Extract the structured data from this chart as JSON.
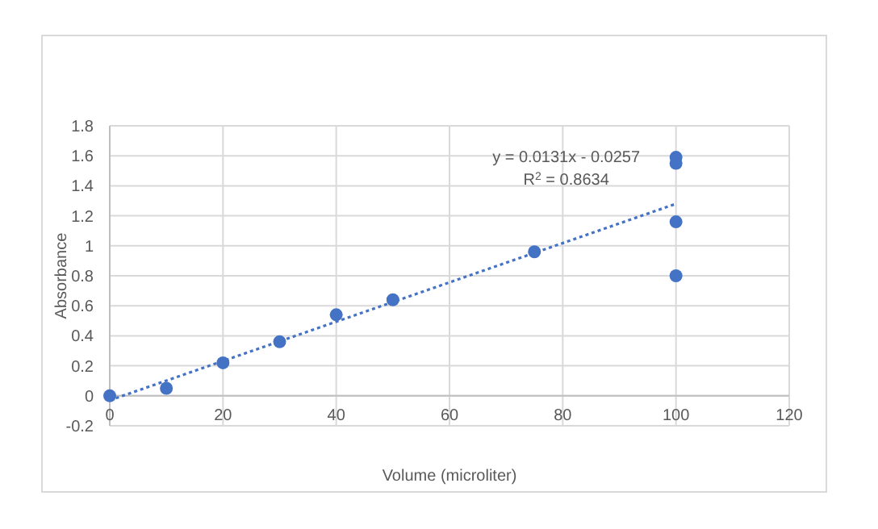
{
  "chart_data": {
    "type": "scatter",
    "xlabel": "Volume (microliter)",
    "ylabel": "Absorbance",
    "series": [
      {
        "color": "#4472c4",
        "x": [
          0,
          10,
          20,
          30,
          40,
          50,
          75,
          100,
          100,
          100,
          100
        ],
        "values": [
          0,
          0.05,
          0.22,
          0.36,
          0.54,
          0.64,
          0.96,
          1.59,
          1.55,
          1.16,
          0.8
        ]
      },
      {
        "type": "line",
        "color": "#4472c4",
        "line_style": "dotted",
        "marker": "none",
        "x": [
          0,
          100
        ],
        "values": [
          -0.03,
          1.28
        ]
      }
    ],
    "xlim": [
      0,
      120
    ],
    "xticks": [
      0,
      20,
      40,
      60,
      80,
      100,
      120
    ],
    "ylim": [
      -0.2,
      1.8
    ],
    "yticks": [
      -0.2,
      0,
      0.2,
      0.4,
      0.6,
      0.8,
      1,
      1.2,
      1.4,
      1.6,
      1.8
    ],
    "grid": true,
    "marker": "circle",
    "annotations": [
      "y = 0.0131x - 0.0257",
      "R$^{2}$ = 0.8634"
    ]
  }
}
